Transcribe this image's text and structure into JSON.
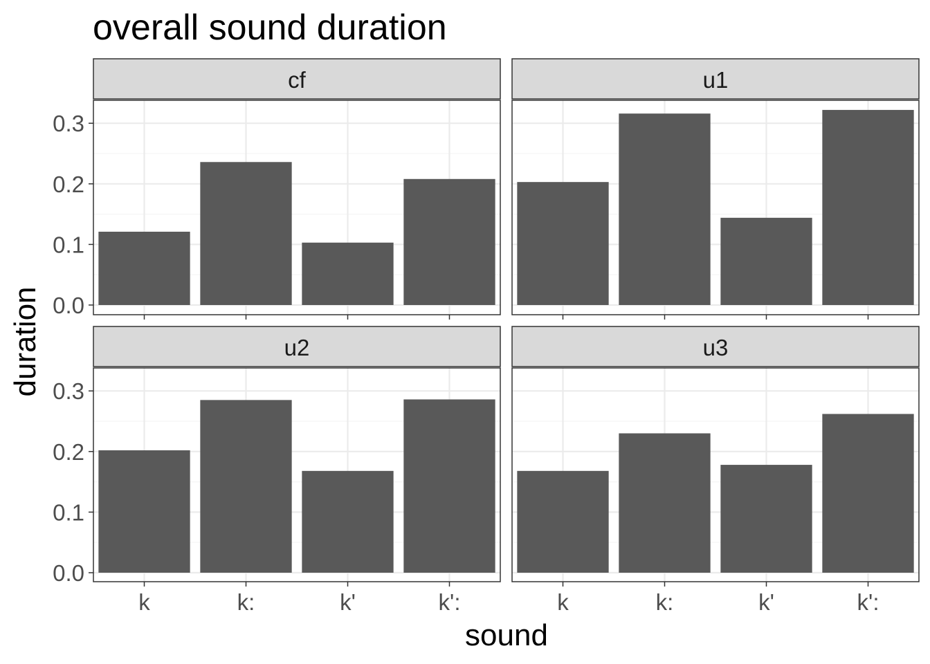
{
  "chart_data": {
    "type": "bar",
    "title": "overall sound duration",
    "xlabel": "sound",
    "ylabel": "duration",
    "categories": [
      "k",
      "k:",
      "k'",
      "k':"
    ],
    "ylim": [
      0,
      0.33
    ],
    "yticks": [
      "0.0",
      "0.1",
      "0.2",
      "0.3"
    ],
    "ytick_values": [
      0,
      0.1,
      0.2,
      0.3
    ],
    "grid": true,
    "colors": {
      "bar": "#595959",
      "strip_bg": "#d9d9d9",
      "grid_major": "#ebebeb",
      "grid_minor": "#f5f5f5",
      "border": "#333333"
    },
    "panels": [
      {
        "name": "cf",
        "values": [
          0.121,
          0.236,
          0.103,
          0.208
        ]
      },
      {
        "name": "u1",
        "values": [
          0.203,
          0.316,
          0.144,
          0.322
        ]
      },
      {
        "name": "u2",
        "values": [
          0.202,
          0.285,
          0.168,
          0.286
        ]
      },
      {
        "name": "u3",
        "values": [
          0.168,
          0.23,
          0.178,
          0.262
        ]
      }
    ]
  }
}
